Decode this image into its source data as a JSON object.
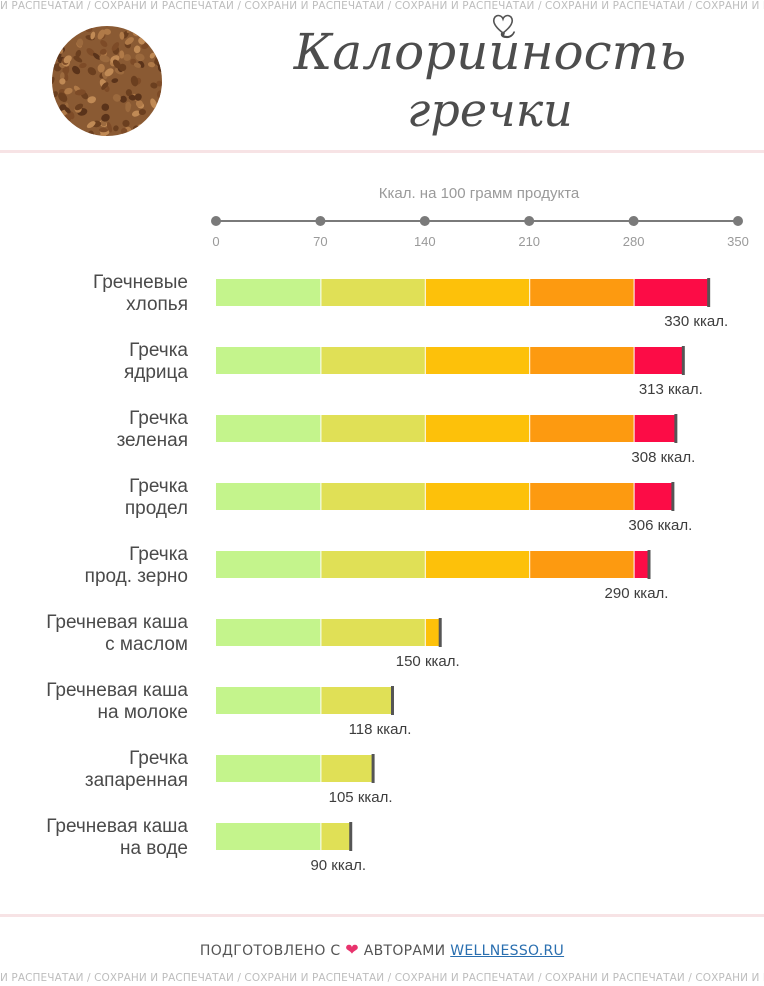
{
  "banner": {
    "top": "И РАСПЕЧАТАЙ / СОХРАНИ И РАСПЕЧАТАЙ / СОХРАНИ И РАСПЕЧАТАЙ / СОХРАНИ И РАСПЕЧАТАЙ / СОХРАНИ И РАСПЕЧАТАЙ / СОХРАНИ И РАС",
    "bottom": "И РАСПЕЧАТАЙ / СОХРАНИ И РАСПЕЧАТАЙ / СОХРАНИ И РАСПЕЧАТАЙ / СОХРАНИ И РАСПЕЧАТАЙ / СОХРАНИ И РАСПЕЧАТАЙ / СОХРАНИ И РАС"
  },
  "header": {
    "title_line1": "Калорийность",
    "title_line2": "гречки",
    "image_icon": "buckwheat-grains-photo"
  },
  "footer": {
    "prefix": "ПОДГОТОВЛЕНО С",
    "heart_icon": "heart-icon",
    "middle": "АВТОРАМИ",
    "link": "WELLNESSO.RU"
  },
  "colors": {
    "segments": [
      "#c4f48c",
      "#e0e056",
      "#fdc10a",
      "#fd9a10",
      "#fc0c46"
    ],
    "end_marker": "#555555",
    "axis": "#7a7a7a",
    "heart": "#e8336d"
  },
  "chart_data": {
    "type": "bar",
    "orientation": "horizontal",
    "title": "Ккал. на 100 грамм продукта",
    "xlim": [
      0,
      350
    ],
    "ticks": [
      0,
      70,
      140,
      210,
      280,
      350
    ],
    "categories": [
      [
        "Гречневые",
        "хлопья"
      ],
      [
        "Гречка",
        "ядрица"
      ],
      [
        "Гречка",
        "зеленая"
      ],
      [
        "Гречка",
        "продел"
      ],
      [
        "Гречка",
        "прод. зерно"
      ],
      [
        "Гречневая каша",
        "с маслом"
      ],
      [
        "Гречневая каша",
        "на молоке"
      ],
      [
        "Гречка",
        "запаренная"
      ],
      [
        "Гречневая каша",
        "на воде"
      ]
    ],
    "values": [
      330,
      313,
      308,
      306,
      290,
      150,
      118,
      105,
      90
    ],
    "value_labels": [
      "330 ккал.",
      "313 ккал.",
      "308 ккал.",
      "306 ккал.",
      "290 ккал.",
      "150 ккал.",
      "118 ккал.",
      "105 ккал.",
      "90 ккал."
    ],
    "grid": false,
    "legend": "none"
  }
}
